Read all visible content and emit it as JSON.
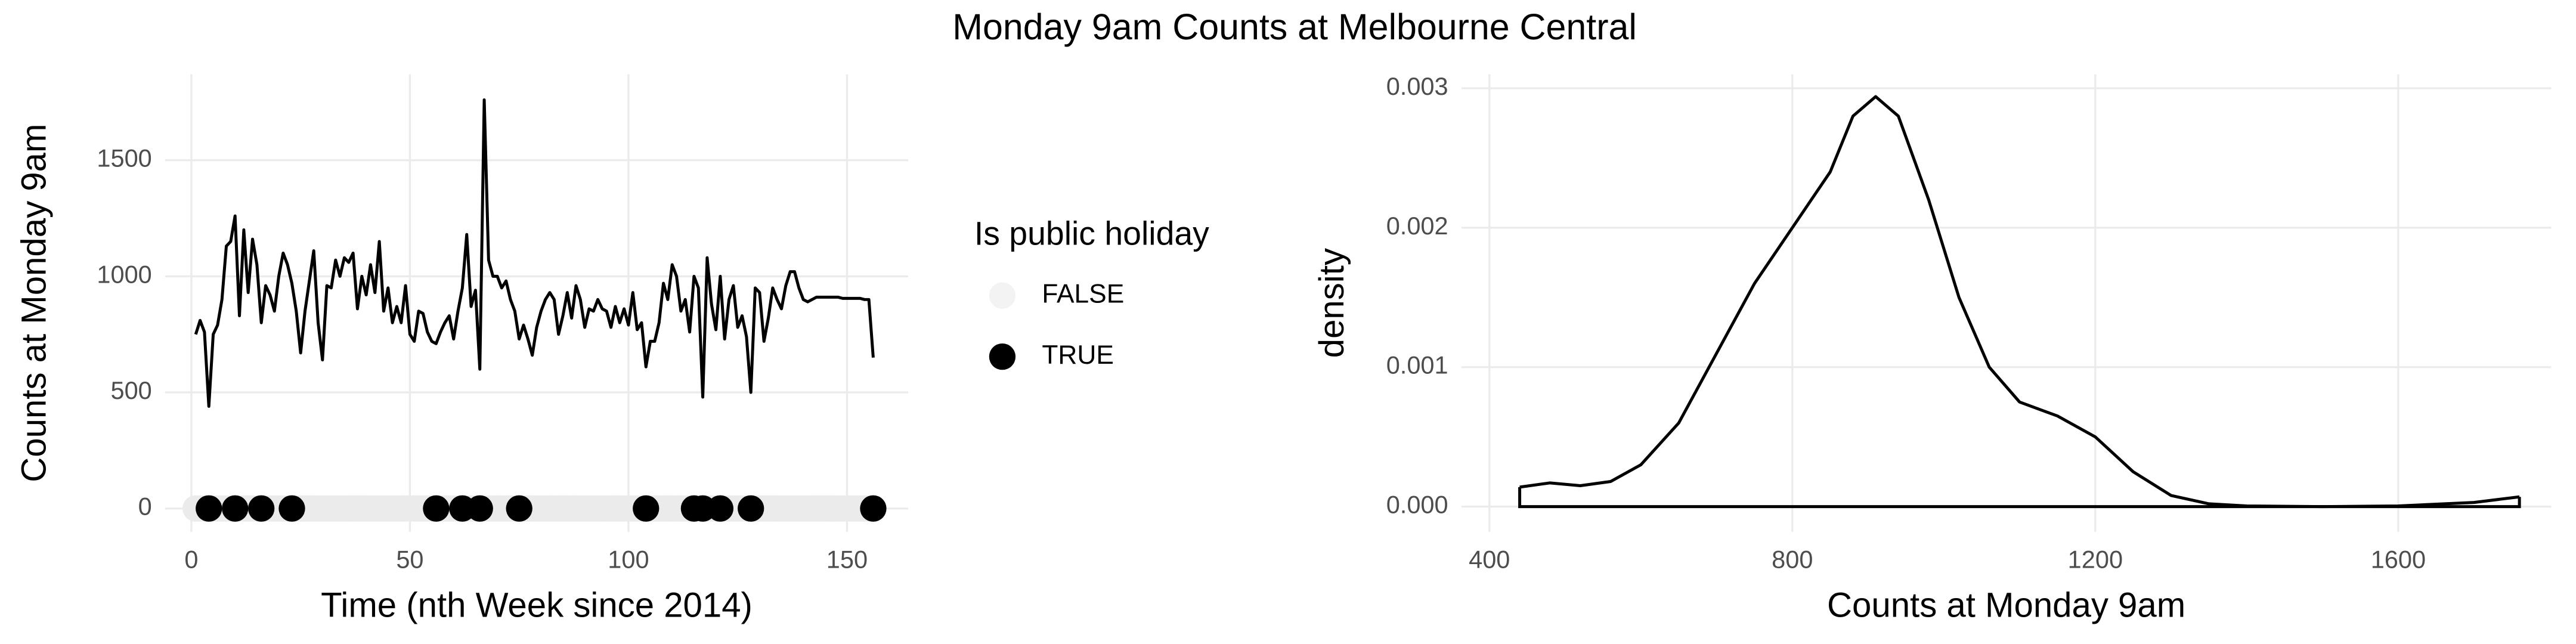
{
  "title": "Monday 9am Counts at Melbourne Central",
  "chart_data": [
    {
      "type": "line",
      "x_label": "Time (nth Week since 2014)",
      "y_label": "Counts at Monday 9am",
      "legend_title": "Is public holiday",
      "xlim": [
        -6,
        164
      ],
      "ylim": [
        -100,
        1870
      ],
      "xticks": [
        0,
        50,
        100,
        150
      ],
      "yticks": [
        0,
        500,
        1000,
        1500
      ],
      "grid": true,
      "series": [
        {
          "type": "line",
          "color": "#000000",
          "x": [
            1,
            2,
            3,
            4,
            5,
            6,
            7,
            8,
            9,
            10,
            11,
            12,
            13,
            14,
            15,
            16,
            17,
            18,
            19,
            20,
            21,
            22,
            23,
            24,
            25,
            26,
            27,
            28,
            29,
            30,
            31,
            32,
            33,
            34,
            35,
            36,
            37,
            38,
            39,
            40,
            41,
            42,
            43,
            44,
            45,
            46,
            47,
            48,
            49,
            50,
            51,
            52,
            53,
            54,
            55,
            56,
            57,
            58,
            59,
            60,
            61,
            62,
            63,
            64,
            65,
            66,
            67,
            68,
            69,
            70,
            71,
            72,
            73,
            74,
            75,
            76,
            77,
            78,
            79,
            80,
            81,
            82,
            83,
            84,
            85,
            86,
            87,
            88,
            89,
            90,
            91,
            92,
            93,
            94,
            95,
            96,
            97,
            98,
            99,
            100,
            101,
            102,
            103,
            104,
            105,
            106,
            107,
            108,
            109,
            110,
            111,
            112,
            113,
            114,
            115,
            116,
            117,
            118,
            119,
            120,
            121,
            122,
            123,
            124,
            125,
            126,
            127,
            128,
            129,
            130,
            131,
            132,
            133,
            134,
            135,
            136,
            137,
            138,
            139,
            140,
            141,
            142,
            143,
            144,
            145,
            146,
            147,
            148,
            149,
            150,
            151,
            152,
            153,
            154,
            155,
            156
          ],
          "values": [
            750,
            810,
            760,
            440,
            750,
            790,
            900,
            1130,
            1150,
            1260,
            830,
            1200,
            930,
            1160,
            1050,
            800,
            960,
            920,
            850,
            1000,
            1100,
            1050,
            970,
            850,
            670,
            850,
            980,
            1110,
            800,
            640,
            960,
            950,
            1070,
            1000,
            1080,
            1060,
            1100,
            860,
            1000,
            920,
            1050,
            930,
            1150,
            850,
            950,
            800,
            870,
            800,
            960,
            750,
            720,
            850,
            840,
            760,
            720,
            710,
            760,
            800,
            830,
            730,
            850,
            950,
            1180,
            870,
            940,
            600,
            1760,
            1070,
            1000,
            1000,
            950,
            980,
            900,
            850,
            730,
            790,
            730,
            660,
            780,
            850,
            900,
            930,
            900,
            750,
            830,
            930,
            820,
            960,
            900,
            780,
            860,
            850,
            900,
            860,
            850,
            780,
            870,
            800,
            860,
            790,
            930,
            770,
            800,
            610,
            720,
            720,
            800,
            970,
            900,
            1050,
            1000,
            850,
            900,
            760,
            1000,
            950,
            480,
            1080,
            880,
            770,
            1000,
            730,
            900,
            960,
            780,
            830,
            740,
            500,
            950,
            930,
            720,
            820,
            950,
            900,
            860,
            960,
            1020,
            1020,
            950,
            900,
            890,
            900,
            910,
            910,
            910,
            910,
            910,
            910,
            905,
            905,
            905,
            905,
            905,
            900,
            900,
            650
          ]
        },
        {
          "name": "FALSE",
          "type": "scatter",
          "color": "#ebebeb",
          "x": [
            1,
            2,
            3,
            5,
            6,
            7,
            8,
            9,
            11,
            12,
            13,
            14,
            15,
            17,
            18,
            19,
            20,
            21,
            22,
            24,
            25,
            26,
            27,
            28,
            29,
            30,
            31,
            32,
            33,
            34,
            35,
            36,
            37,
            38,
            39,
            40,
            41,
            42,
            43,
            44,
            45,
            46,
            47,
            48,
            49,
            50,
            51,
            52,
            53,
            54,
            55,
            57,
            58,
            59,
            60,
            61,
            63,
            64,
            65,
            67,
            68,
            69,
            70,
            71,
            72,
            73,
            74,
            76,
            77,
            78,
            79,
            80,
            81,
            82,
            83,
            84,
            85,
            86,
            87,
            88,
            89,
            90,
            91,
            92,
            93,
            94,
            95,
            96,
            97,
            98,
            99,
            100,
            101,
            102,
            103,
            105,
            106,
            107,
            108,
            109,
            110,
            111,
            112,
            113,
            114,
            116,
            118,
            119,
            120,
            122,
            123,
            124,
            125,
            126,
            127,
            129,
            130,
            131,
            132,
            133,
            134,
            135,
            136,
            137,
            138,
            139,
            140,
            141,
            142,
            143,
            144,
            145,
            146,
            147,
            148,
            149,
            150,
            151,
            152,
            153,
            154,
            155
          ],
          "values": [
            0,
            0,
            0,
            0,
            0,
            0,
            0,
            0,
            0,
            0,
            0,
            0,
            0,
            0,
            0,
            0,
            0,
            0,
            0,
            0,
            0,
            0,
            0,
            0,
            0,
            0,
            0,
            0,
            0,
            0,
            0,
            0,
            0,
            0,
            0,
            0,
            0,
            0,
            0,
            0,
            0,
            0,
            0,
            0,
            0,
            0,
            0,
            0,
            0,
            0,
            0,
            0,
            0,
            0,
            0,
            0,
            0,
            0,
            0,
            0,
            0,
            0,
            0,
            0,
            0,
            0,
            0,
            0,
            0,
            0,
            0,
            0,
            0,
            0,
            0,
            0,
            0,
            0,
            0,
            0,
            0,
            0,
            0,
            0,
            0,
            0,
            0,
            0,
            0,
            0,
            0,
            0,
            0,
            0,
            0,
            0,
            0,
            0,
            0,
            0,
            0,
            0,
            0,
            0,
            0,
            0,
            0,
            0,
            0,
            0,
            0,
            0,
            0,
            0,
            0,
            0,
            0,
            0,
            0,
            0,
            0,
            0,
            0,
            0,
            0,
            0,
            0,
            0,
            0,
            0,
            0,
            0,
            0,
            0,
            0,
            0,
            0,
            0,
            0,
            0,
            0,
            0
          ]
        },
        {
          "name": "TRUE",
          "type": "scatter",
          "color": "#000000",
          "x": [
            4,
            10,
            16,
            23,
            56,
            62,
            66,
            75,
            104,
            115,
            117,
            121,
            128,
            156
          ],
          "values": [
            0,
            0,
            0,
            0,
            0,
            0,
            0,
            0,
            0,
            0,
            0,
            0,
            0,
            0
          ]
        }
      ]
    },
    {
      "type": "density",
      "x_label": "Counts at Monday 9am",
      "y_label": "density",
      "xlim": [
        363,
        1802
      ],
      "ylim": [
        -0.00018,
        0.0031
      ],
      "xticks": [
        400,
        800,
        1200,
        1600
      ],
      "yticks": [
        {
          "value": 0,
          "label": "0.000"
        },
        {
          "value": 0.001,
          "label": "0.001"
        },
        {
          "value": 0.002,
          "label": "0.002"
        },
        {
          "value": 0.003,
          "label": "0.003"
        }
      ],
      "grid": true,
      "series": [
        {
          "type": "density",
          "color": "#000000",
          "x": [
            440,
            480,
            520,
            560,
            600,
            650,
            700,
            750,
            800,
            850,
            880,
            910,
            940,
            980,
            1020,
            1060,
            1100,
            1150,
            1200,
            1250,
            1300,
            1350,
            1400,
            1500,
            1600,
            1700,
            1760
          ],
          "values": [
            0.00014,
            0.00017,
            0.00015,
            0.00018,
            0.0003,
            0.0006,
            0.0011,
            0.0016,
            0.002,
            0.0024,
            0.0028,
            0.00294,
            0.0028,
            0.0022,
            0.0015,
            0.001,
            0.00075,
            0.00065,
            0.0005,
            0.00025,
            8e-05,
            2e-05,
            5e-06,
            0,
            5e-06,
            3e-05,
            7e-05
          ]
        }
      ]
    }
  ]
}
